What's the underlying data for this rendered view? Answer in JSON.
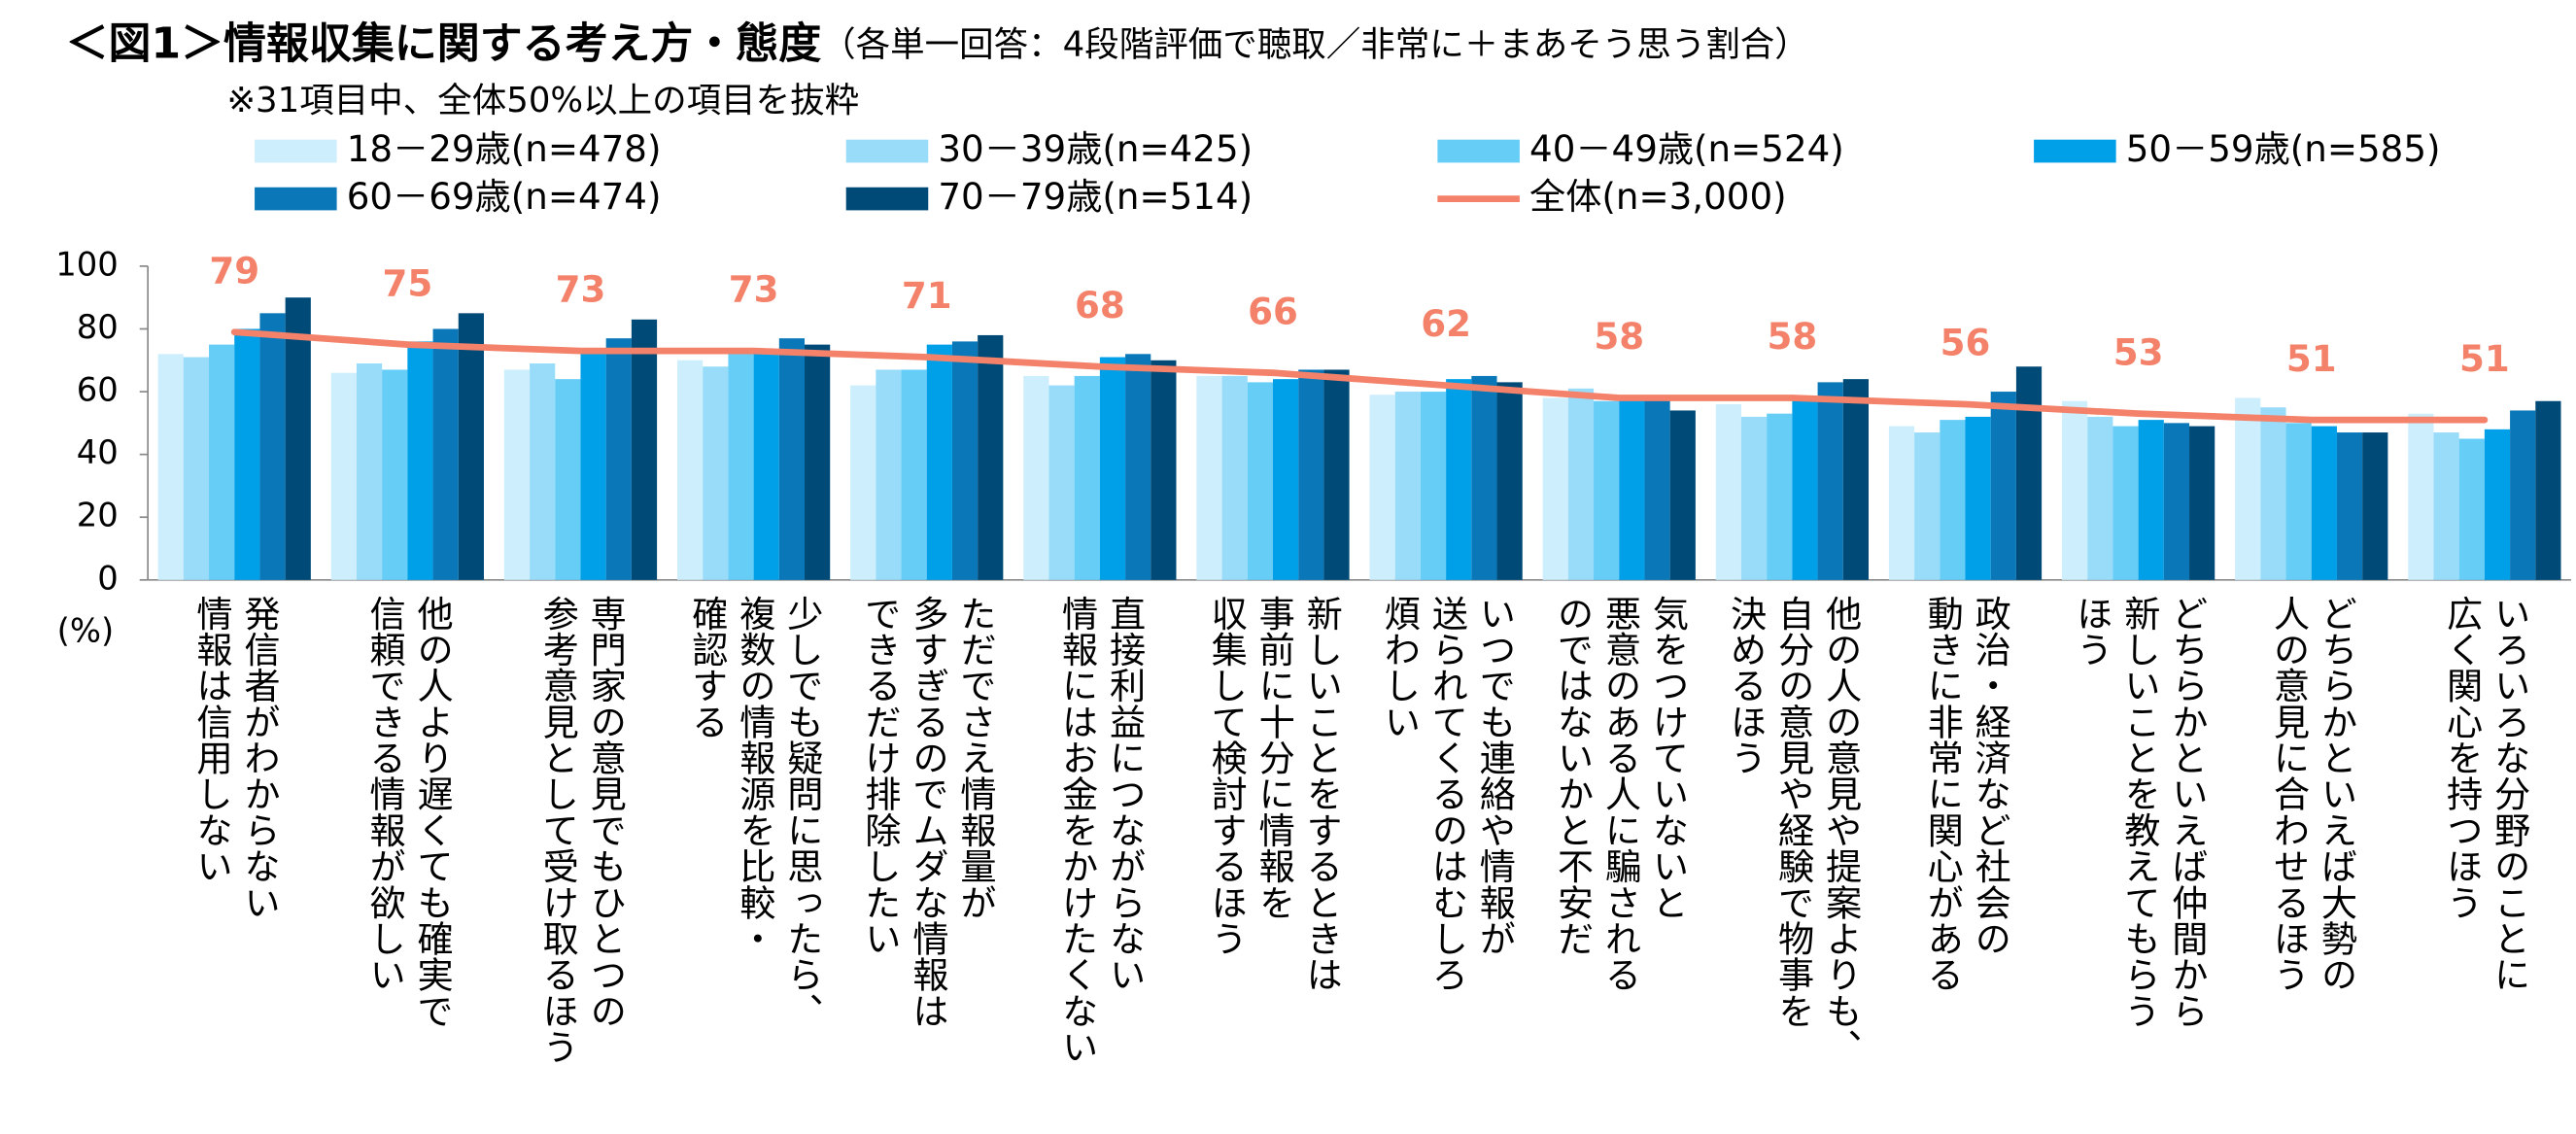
{
  "chart_data": {
    "type": "bar",
    "title": "＜図1＞情報収集に関する考え方・態度",
    "subtitle": "（各単一回答：4段階評価で聴取／非常に＋まあそう思う割合）",
    "note": "※31項目中、全体50%以上の項目を抜粋",
    "y_label": "(%)",
    "categories": [
      "発信者がわからない\n情報は信用しない",
      "他の人より遅くても確実で\n信頼できる情報が欲しい",
      "専門家の意見でもひとつの\n参考意見として受け取るほう",
      "少しでも疑問に思ったら、\n複数の情報源を比較・\n確認する",
      "ただでさえ情報量が\n多すぎるのでムダな情報は\nできるだけ排除したい",
      "直接利益につながらない\n情報にはお金をかけたくない",
      "新しいことをするときは\n事前に十分に情報を\n収集して検討するほう",
      "いつでも連絡や情報が\n送られてくるのはむしろ\n煩わしい",
      "気をつけていないと\n悪意のある人に騙される\nのではないかと不安だ",
      "他の人の意見や提案よりも、\n自分の意見や経験で物事を\n決めるほう",
      "政治・経済など社会の\n動きに非常に関心がある",
      "どちらかといえば仲間から\n新しいことを教えてもらう\nほう",
      "どちらかといえば大勢の\n人の意見に合わせるほう",
      "いろいろな分野のことに\n広く関心を持つほう"
    ],
    "series": [
      {
        "name": "18－29歳(n=478)",
        "color": "#cdeefc",
        "values": [
          72,
          66,
          67,
          70,
          62,
          65,
          65,
          59,
          58,
          56,
          49,
          57,
          58,
          53
        ]
      },
      {
        "name": "30－39歳(n=425)",
        "color": "#99dcfa",
        "values": [
          71,
          69,
          69,
          68,
          67,
          62,
          65,
          60,
          61,
          52,
          47,
          52,
          55,
          47
        ]
      },
      {
        "name": "40－49歳(n=524)",
        "color": "#66cdf7",
        "values": [
          75,
          67,
          64,
          72,
          67,
          65,
          63,
          60,
          57,
          53,
          51,
          49,
          50,
          45
        ]
      },
      {
        "name": "50－59歳(n=585)",
        "color": "#00a0e9",
        "values": [
          80,
          76,
          72,
          72,
          75,
          71,
          64,
          64,
          58,
          57,
          52,
          51,
          49,
          48
        ]
      },
      {
        "name": "60－69歳(n=474)",
        "color": "#0a78b8",
        "values": [
          85,
          80,
          77,
          77,
          76,
          72,
          67,
          65,
          58,
          63,
          60,
          50,
          47,
          54
        ]
      },
      {
        "name": "70－79歳(n=514)",
        "color": "#004a77",
        "values": [
          90,
          85,
          83,
          75,
          78,
          70,
          67,
          63,
          54,
          64,
          68,
          49,
          47,
          57
        ]
      },
      {
        "name": "全体(n=3,000)",
        "color": "#f4826a",
        "type": "line",
        "values": [
          79,
          75,
          73,
          73,
          71,
          68,
          66,
          62,
          58,
          58,
          56,
          53,
          51,
          51
        ]
      }
    ],
    "ylim": [
      0,
      100
    ],
    "yticks": [
      0,
      20,
      40,
      60,
      80,
      100
    ],
    "grid": false
  }
}
